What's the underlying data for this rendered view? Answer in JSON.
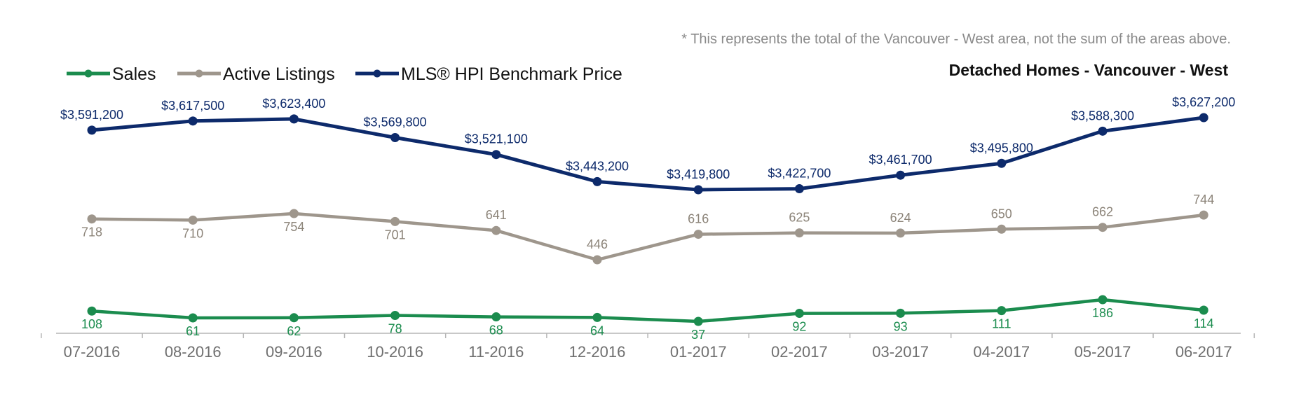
{
  "chart_data": {
    "type": "line",
    "title": "Detached Homes - Vancouver - West",
    "note": "* This represents the total of the Vancouver - West area, not the sum of the areas above.",
    "categories": [
      "07-2016",
      "08-2016",
      "09-2016",
      "10-2016",
      "11-2016",
      "12-2016",
      "01-2017",
      "02-2017",
      "03-2017",
      "04-2017",
      "05-2017",
      "06-2017"
    ],
    "legend_position": "top-left",
    "grid": false,
    "series": [
      {
        "name": "Sales",
        "color": "#1b8c4e",
        "values": [
          108,
          61,
          62,
          78,
          68,
          64,
          37,
          92,
          93,
          111,
          186,
          114
        ],
        "labels": [
          "108",
          "61",
          "62",
          "78",
          "68",
          "64",
          "37",
          "92",
          "93",
          "111",
          "186",
          "114"
        ]
      },
      {
        "name": "Active Listings",
        "color": "#9e968c",
        "values": [
          718,
          710,
          754,
          701,
          641,
          446,
          616,
          625,
          624,
          650,
          662,
          744
        ],
        "labels": [
          "718",
          "710",
          "754",
          "701",
          "641",
          "446",
          "616",
          "625",
          "624",
          "650",
          "662",
          "744"
        ]
      },
      {
        "name": "MLS® HPI Benchmark Price",
        "color": "#0d2a6b",
        "values": [
          3591200,
          3617500,
          3623400,
          3569800,
          3521100,
          3443200,
          3419800,
          3422700,
          3461700,
          3495800,
          3588300,
          3627200
        ],
        "labels": [
          "$3,591,200",
          "$3,617,500",
          "$3,623,400",
          "$3,569,800",
          "$3,521,100",
          "$3,443,200",
          "$3,419,800",
          "$3,422,700",
          "$3,461,700",
          "$3,495,800",
          "$3,588,300",
          "$3,627,200"
        ]
      }
    ]
  }
}
